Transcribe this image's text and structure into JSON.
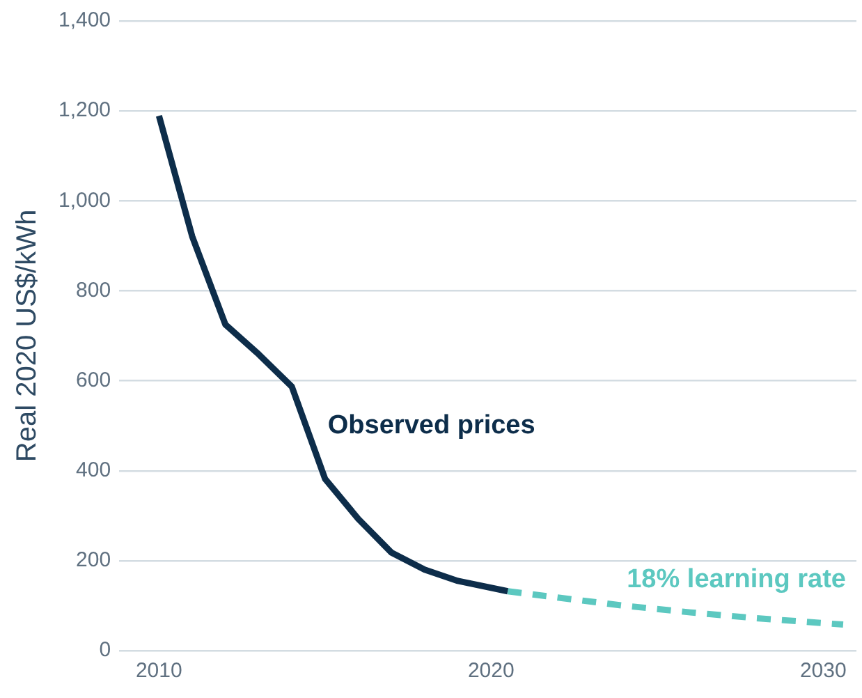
{
  "chart_data": {
    "type": "line",
    "ylabel": "Real 2020 US$/kWh",
    "series": [
      {
        "name": "Observed prices",
        "color": "#0d2d4a",
        "line_style": "solid",
        "x": [
          2010,
          2011,
          2012,
          2013,
          2014,
          2015,
          2016,
          2017,
          2018,
          2019,
          2020.5
        ],
        "values": [
          1189,
          921,
          725,
          659,
          587,
          382,
          293,
          218,
          180,
          155,
          132
        ]
      },
      {
        "name": "18% learning rate",
        "color": "#5cc8c0",
        "line_style": "dashed",
        "x": [
          2020.5,
          2022,
          2024,
          2026,
          2028,
          2030.6
        ],
        "values": [
          132,
          118,
          100,
          85,
          72,
          58
        ]
      }
    ],
    "xlim": [
      2008.8,
      2031
    ],
    "xticks": [
      2010,
      2020,
      2030
    ],
    "ylim": [
      0,
      1400
    ],
    "yticks": [
      0,
      200,
      400,
      600,
      800,
      {
        "value": 1000,
        "label": "1,000"
      },
      {
        "value": 1200,
        "label": "1,200"
      },
      {
        "value": 1400,
        "label": "1,400"
      }
    ],
    "grid": "y",
    "legend": false,
    "marker": "none"
  }
}
